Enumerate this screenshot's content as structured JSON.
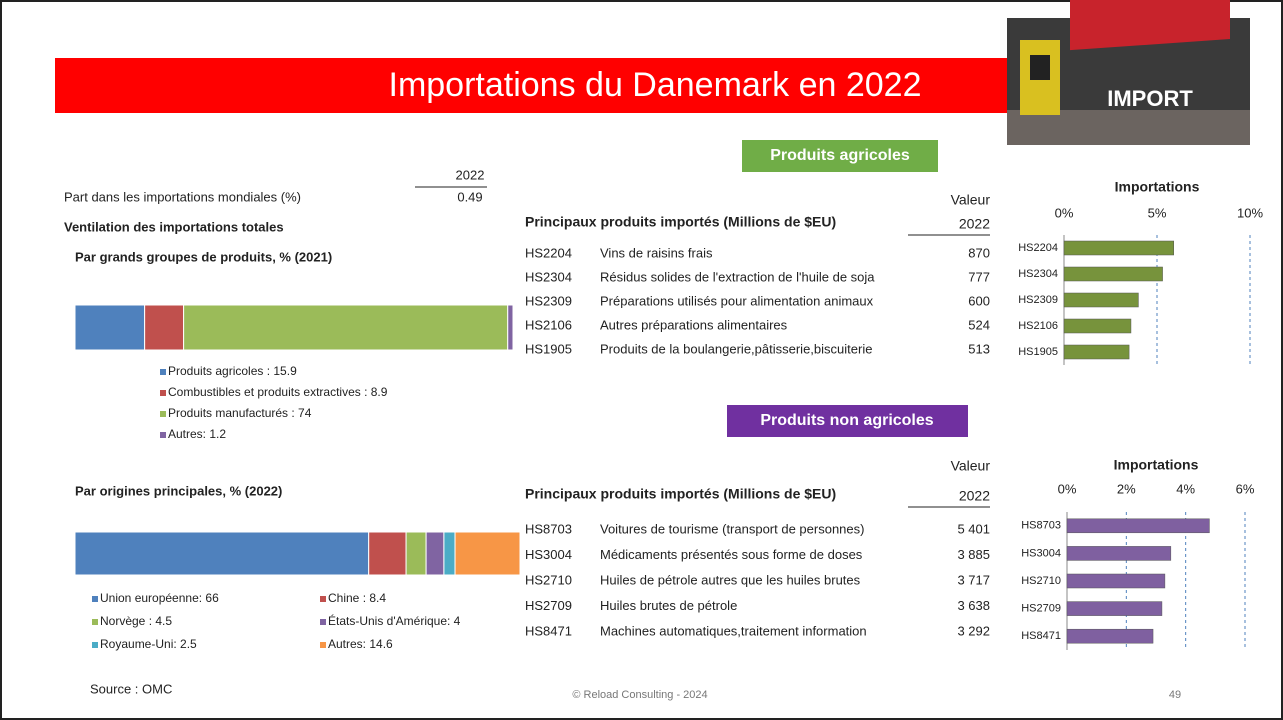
{
  "header": {
    "title": "Importations du Danemark en 2022",
    "image_label": "IMPORT"
  },
  "summary": {
    "year": "2022",
    "label": "Part dans les importations mondiales (%)",
    "value": "0.49",
    "section": "Ventilation des importations totales"
  },
  "chart_data": [
    {
      "type": "stacked-bar",
      "title": "Par grands groupes de produits, % (2021)",
      "series": [
        {
          "name": "Produits agricoles : 15.9",
          "color": "#4f81bd",
          "values": [
            15.9
          ]
        },
        {
          "name": "Combustibles et produits extractives : 8.9",
          "color": "#c0504d",
          "values": [
            8.9
          ]
        },
        {
          "name": "Produits manufacturés : 74",
          "color": "#9bbb59",
          "values": [
            74
          ]
        },
        {
          "name": "Autres: 1.2",
          "color": "#8064a2",
          "values": [
            1.2
          ]
        }
      ]
    },
    {
      "type": "stacked-bar",
      "title": "Par origines principales, % (2022)",
      "series": [
        {
          "name": "Union européenne: 66",
          "color": "#4f81bd",
          "values": [
            66
          ]
        },
        {
          "name": "Chine : 8.4",
          "color": "#c0504d",
          "values": [
            8.4
          ]
        },
        {
          "name": "Norvège : 4.5",
          "color": "#9bbb59",
          "values": [
            4.5
          ]
        },
        {
          "name": "États-Unis d'Amérique: 4",
          "color": "#8064a2",
          "values": [
            4
          ]
        },
        {
          "name": "Royaume-Uni: 2.5",
          "color": "#4bacc6",
          "values": [
            2.5
          ]
        },
        {
          "name": "Autres: 14.6",
          "color": "#f79646",
          "values": [
            14.6
          ]
        }
      ]
    },
    {
      "type": "hbar",
      "title": "Importations",
      "categories": [
        "HS2204",
        "HS2304",
        "HS2309",
        "HS2106",
        "HS1905"
      ],
      "values": [
        5.9,
        5.3,
        4.0,
        3.6,
        3.5
      ],
      "color": "#77933c",
      "xlim": [
        0,
        10
      ],
      "xticks": [
        {
          "value": 0,
          "label": "0%"
        },
        {
          "value": 5,
          "label": "5%"
        },
        {
          "value": 10,
          "label": "10%"
        }
      ],
      "grid": true
    },
    {
      "type": "hbar",
      "title": "Importations",
      "categories": [
        "HS8703",
        "HS3004",
        "HS2710",
        "HS2709",
        "HS8471"
      ],
      "values": [
        4.8,
        3.5,
        3.3,
        3.2,
        2.9
      ],
      "color": "#7f60a0",
      "xlim": [
        0,
        6
      ],
      "xticks": [
        {
          "value": 0,
          "label": "0%"
        },
        {
          "value": 2,
          "label": "2%"
        },
        {
          "value": 4,
          "label": "4%"
        },
        {
          "value": 6,
          "label": "6%"
        }
      ],
      "grid": true
    }
  ],
  "agricultural": {
    "badge": "Produits agricoles",
    "table": {
      "title": "Principaux produits importés (Millions de $EU)",
      "value_header": "Valeur",
      "year": "2022",
      "rows": [
        [
          "HS2204",
          "Vins de raisins frais",
          "870"
        ],
        [
          "HS2304",
          "Résidus solides de l'extraction de l'huile de soja",
          "777"
        ],
        [
          "HS2309",
          "Préparations utilisés pour alimentation animaux",
          "600"
        ],
        [
          "HS2106",
          "Autres préparations alimentaires",
          "524"
        ],
        [
          "HS1905",
          "Produits de la boulangerie,pâtisserie,biscuiterie",
          "513"
        ]
      ]
    }
  },
  "non_agricultural": {
    "badge": "Produits non agricoles",
    "table": {
      "title": "Principaux produits importés (Millions de $EU)",
      "value_header": "Valeur",
      "year": "2022",
      "rows": [
        [
          "HS8703",
          "Voitures de tourisme (transport de personnes)",
          "5 401"
        ],
        [
          "HS3004",
          "Médicaments présentés sous forme de doses",
          "3 885"
        ],
        [
          "HS2710",
          "Huiles de pétrole autres que les huiles brutes",
          "3 717"
        ],
        [
          "HS2709",
          "Huiles brutes de pétrole",
          "3 638"
        ],
        [
          "HS8471",
          "Machines automatiques,traitement information",
          "3 292"
        ]
      ]
    }
  },
  "footer": {
    "source": "Source : OMC",
    "copyright": "© Reload Consulting - 2024",
    "page": "49"
  }
}
